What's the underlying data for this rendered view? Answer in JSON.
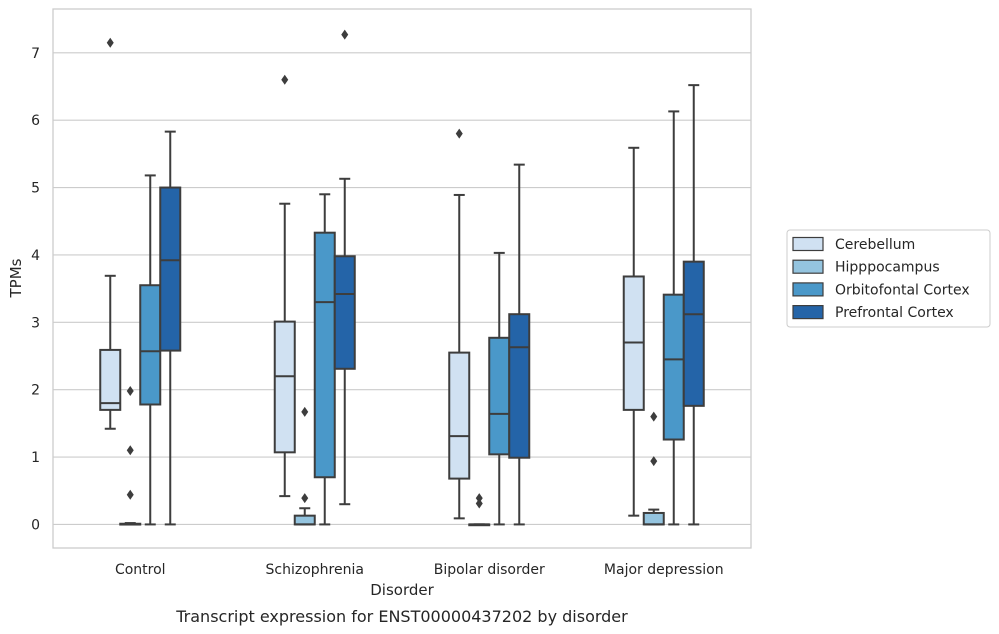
{
  "caption": "Transcript expression for ENST00000437202 by disorder",
  "chart_data": {
    "type": "box",
    "xlabel": "Disorder",
    "ylabel": "TPMs",
    "ylim": [
      -0.35,
      7.65
    ],
    "yticks": [
      0,
      1,
      2,
      3,
      4,
      5,
      6,
      7
    ],
    "grid": "horizontal",
    "legend_position": "right",
    "categories": [
      "Control",
      "Schizophrenia",
      "Bipolar disorder",
      "Major depression"
    ],
    "series": [
      {
        "name": "Cerebellum",
        "color": "#d0e1f2",
        "boxes": [
          {
            "whislo": 1.42,
            "q1": 1.7,
            "med": 1.8,
            "q3": 2.59,
            "whishi": 3.69,
            "fliers": [
              7.15
            ]
          },
          {
            "whislo": 0.42,
            "q1": 1.07,
            "med": 2.2,
            "q3": 3.01,
            "whishi": 4.76,
            "fliers": [
              6.6
            ]
          },
          {
            "whislo": 0.09,
            "q1": 0.68,
            "med": 1.31,
            "q3": 2.55,
            "whishi": 4.89,
            "fliers": [
              5.8
            ]
          },
          {
            "whislo": 0.13,
            "q1": 1.7,
            "med": 2.7,
            "q3": 3.68,
            "whishi": 5.59,
            "fliers": []
          }
        ]
      },
      {
        "name": "Hipppocampus",
        "color": "#94c4df",
        "boxes": [
          {
            "whislo": 0.0,
            "q1": 0.0,
            "med": 0.0,
            "q3": 0.01,
            "whishi": 0.02,
            "fliers": [
              1.98,
              1.1,
              0.44
            ]
          },
          {
            "whislo": 0.0,
            "q1": 0.0,
            "med": 0.0,
            "q3": 0.13,
            "whishi": 0.24,
            "fliers": [
              1.67,
              0.39
            ]
          },
          {
            "whislo": 0.0,
            "q1": 0.0,
            "med": 0.0,
            "q3": 0.0,
            "whishi": 0.0,
            "fliers": [
              0.39,
              0.31
            ]
          },
          {
            "whislo": 0.0,
            "q1": 0.0,
            "med": 0.0,
            "q3": 0.17,
            "whishi": 0.22,
            "fliers": [
              1.6,
              0.94
            ]
          }
        ]
      },
      {
        "name": "Orbitofontal Cortex",
        "color": "#4a98c9",
        "boxes": [
          {
            "whislo": 0.0,
            "q1": 1.78,
            "med": 2.57,
            "q3": 3.55,
            "whishi": 5.18,
            "fliers": []
          },
          {
            "whislo": 0.0,
            "q1": 0.7,
            "med": 3.3,
            "q3": 4.33,
            "whishi": 4.9,
            "fliers": []
          },
          {
            "whislo": 0.0,
            "q1": 1.04,
            "med": 1.64,
            "q3": 2.77,
            "whishi": 4.03,
            "fliers": []
          },
          {
            "whislo": 0.0,
            "q1": 1.26,
            "med": 2.45,
            "q3": 3.41,
            "whishi": 6.13,
            "fliers": []
          }
        ]
      },
      {
        "name": "Prefrontal Cortex",
        "color": "#2464a8",
        "boxes": [
          {
            "whislo": 0.0,
            "q1": 2.58,
            "med": 3.92,
            "q3": 5.0,
            "whishi": 5.83,
            "fliers": []
          },
          {
            "whislo": 0.3,
            "q1": 2.31,
            "med": 3.42,
            "q3": 3.98,
            "whishi": 5.13,
            "fliers": [
              7.27
            ]
          },
          {
            "whislo": 0.0,
            "q1": 0.99,
            "med": 2.63,
            "q3": 3.12,
            "whishi": 5.34,
            "fliers": []
          },
          {
            "whislo": 0.0,
            "q1": 1.76,
            "med": 3.12,
            "q3": 3.9,
            "whishi": 6.52,
            "fliers": []
          }
        ]
      }
    ]
  }
}
